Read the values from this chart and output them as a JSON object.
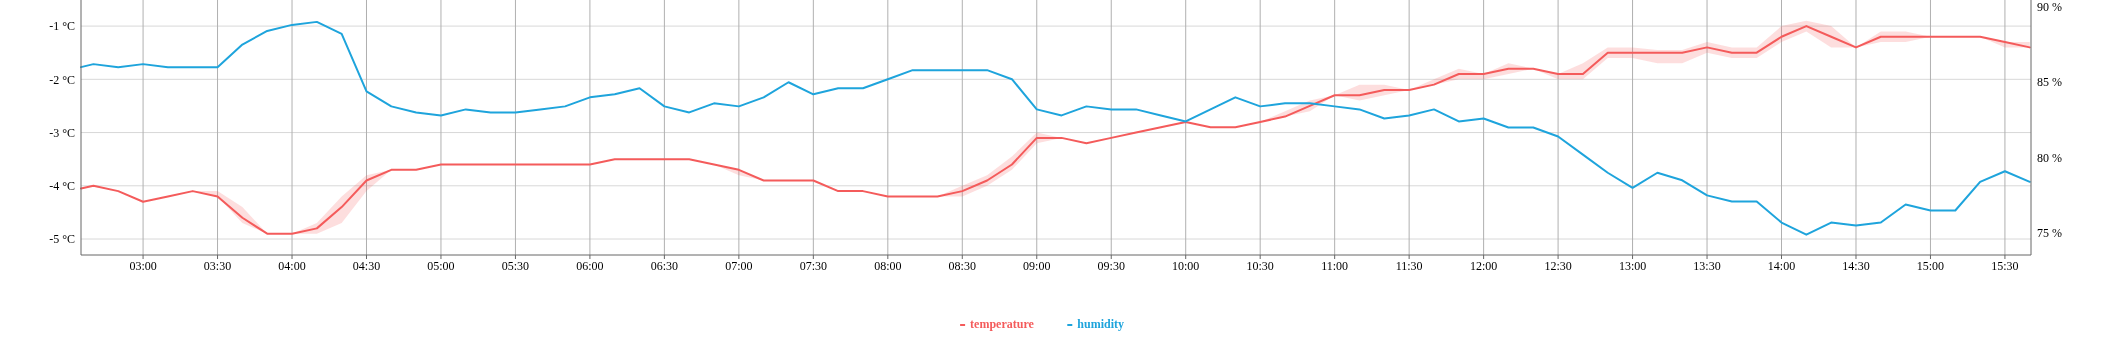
{
  "chart_data": {
    "type": "line",
    "x": [
      2.5833,
      2.6667,
      2.8333,
      3,
      3.1667,
      3.3333,
      3.5,
      3.6667,
      3.8333,
      4,
      4.1667,
      4.3333,
      4.5,
      4.6667,
      4.8333,
      5,
      5.1667,
      5.3333,
      5.5,
      5.6667,
      5.8333,
      6,
      6.1667,
      6.3333,
      6.5,
      6.6667,
      6.8333,
      7,
      7.1667,
      7.3333,
      7.5,
      7.6667,
      7.8333,
      8,
      8.1667,
      8.3333,
      8.5,
      8.6667,
      8.8333,
      9,
      9.1667,
      9.3333,
      9.5,
      9.6667,
      9.8333,
      10,
      10.1667,
      10.3333,
      10.5,
      10.6667,
      10.8333,
      11,
      11.1667,
      11.3333,
      11.5,
      11.6667,
      11.8333,
      12,
      12.1667,
      12.3333,
      12.5,
      12.6667,
      12.8333,
      13,
      13.1667,
      13.3333,
      13.5,
      13.6667,
      13.8333,
      14,
      14.1667,
      14.3333,
      14.5,
      14.6667,
      14.8333,
      15,
      15.1667,
      15.3333,
      15.5,
      15.6667
    ],
    "series": [
      {
        "name": "temperature",
        "color": "#f45b5b",
        "values": [
          -4.05,
          -4.0,
          -4.1,
          -4.3,
          -4.2,
          -4.1,
          -4.2,
          -4.6,
          -4.9,
          -4.9,
          -4.8,
          -4.4,
          -3.9,
          -3.7,
          -3.7,
          -3.6,
          -3.6,
          -3.6,
          -3.6,
          -3.6,
          -3.6,
          -3.6,
          -3.5,
          -3.5,
          -3.5,
          -3.5,
          -3.6,
          -3.7,
          -3.9,
          -3.9,
          -3.9,
          -4.1,
          -4.1,
          -4.2,
          -4.2,
          -4.2,
          -4.1,
          -3.9,
          -3.6,
          -3.1,
          -3.1,
          -3.2,
          -3.1,
          -3.0,
          -2.9,
          -2.8,
          -2.9,
          -2.9,
          -2.8,
          -2.7,
          -2.5,
          -2.3,
          -2.3,
          -2.2,
          -2.2,
          -2.1,
          -1.9,
          -1.9,
          -1.8,
          -1.8,
          -1.9,
          -1.9,
          -1.5,
          -1.5,
          -1.5,
          -1.5,
          -1.4,
          -1.5,
          -1.5,
          -1.2,
          -1.0,
          -1.2,
          -1.4,
          -1.2,
          -1.2,
          -1.2,
          -1.2,
          -1.2,
          -1.3,
          -1.4
        ],
        "lower": [
          -4.05,
          -4.0,
          -4.1,
          -4.3,
          -4.2,
          -4.1,
          -4.2,
          -4.7,
          -4.9,
          -4.9,
          -4.9,
          -4.7,
          -4.1,
          -3.7,
          -3.7,
          -3.6,
          -3.6,
          -3.6,
          -3.6,
          -3.6,
          -3.6,
          -3.6,
          -3.5,
          -3.5,
          -3.5,
          -3.5,
          -3.6,
          -3.8,
          -3.9,
          -3.9,
          -3.9,
          -4.1,
          -4.1,
          -4.2,
          -4.2,
          -4.2,
          -4.2,
          -4.0,
          -3.7,
          -3.2,
          -3.1,
          -3.2,
          -3.1,
          -3.0,
          -2.9,
          -2.8,
          -2.9,
          -2.9,
          -2.8,
          -2.7,
          -2.6,
          -2.3,
          -2.4,
          -2.3,
          -2.2,
          -2.1,
          -2.0,
          -2.0,
          -1.9,
          -1.8,
          -2.0,
          -2.0,
          -1.6,
          -1.6,
          -1.7,
          -1.7,
          -1.5,
          -1.6,
          -1.6,
          -1.3,
          -1.1,
          -1.4,
          -1.4,
          -1.3,
          -1.3,
          -1.2,
          -1.2,
          -1.2,
          -1.4,
          -1.4
        ],
        "upper": [
          -4.05,
          -4.0,
          -4.1,
          -4.3,
          -4.2,
          -4.1,
          -4.1,
          -4.4,
          -4.9,
          -4.9,
          -4.7,
          -4.2,
          -3.8,
          -3.7,
          -3.7,
          -3.6,
          -3.6,
          -3.6,
          -3.6,
          -3.6,
          -3.6,
          -3.6,
          -3.5,
          -3.5,
          -3.5,
          -3.5,
          -3.6,
          -3.7,
          -3.9,
          -3.9,
          -3.9,
          -4.1,
          -4.1,
          -4.2,
          -4.2,
          -4.2,
          -4.0,
          -3.8,
          -3.45,
          -3.0,
          -3.1,
          -3.2,
          -3.1,
          -3.0,
          -2.9,
          -2.8,
          -2.9,
          -2.9,
          -2.8,
          -2.6,
          -2.4,
          -2.3,
          -2.1,
          -2.1,
          -2.2,
          -2.0,
          -1.8,
          -1.9,
          -1.7,
          -1.8,
          -1.9,
          -1.7,
          -1.4,
          -1.4,
          -1.45,
          -1.45,
          -1.3,
          -1.4,
          -1.4,
          -1.0,
          -0.9,
          -1.0,
          -1.4,
          -1.1,
          -1.1,
          -1.2,
          -1.2,
          -1.2,
          -1.3,
          -1.3
        ]
      },
      {
        "name": "humidity",
        "color": "#1ea4dc",
        "axis": "y2",
        "values": [
          86.0,
          86.2,
          86.0,
          86.2,
          86.0,
          86.0,
          86.0,
          87.5,
          88.4,
          88.8,
          89.0,
          88.2,
          84.4,
          83.4,
          83.0,
          82.8,
          83.2,
          83.0,
          83.0,
          83.2,
          83.4,
          84.0,
          84.2,
          84.6,
          83.4,
          83.0,
          83.6,
          83.4,
          84.0,
          85.0,
          84.2,
          84.6,
          84.6,
          85.2,
          85.8,
          85.8,
          85.8,
          85.8,
          85.2,
          83.2,
          82.8,
          83.4,
          83.2,
          83.2,
          82.8,
          82.4,
          83.2,
          84.0,
          83.4,
          83.6,
          83.6,
          83.4,
          83.2,
          82.6,
          82.8,
          83.2,
          82.4,
          82.6,
          82.0,
          82.0,
          81.4,
          80.2,
          79.0,
          78.0,
          79.0,
          78.5,
          77.5,
          77.1,
          77.1,
          75.7,
          74.9,
          75.7,
          75.5,
          75.7,
          76.9,
          76.5,
          76.5,
          78.4,
          79.1,
          78.4
        ]
      }
    ],
    "xlim": [
      2.5833,
      15.675
    ],
    "xticks": [
      {
        "value": 3,
        "label": "03:00"
      },
      {
        "value": 3.5,
        "label": "03:30"
      },
      {
        "value": 4,
        "label": "04:00"
      },
      {
        "value": 4.5,
        "label": "04:30"
      },
      {
        "value": 5,
        "label": "05:00"
      },
      {
        "value": 5.5,
        "label": "05:30"
      },
      {
        "value": 6,
        "label": "06:00"
      },
      {
        "value": 6.5,
        "label": "06:30"
      },
      {
        "value": 7,
        "label": "07:00"
      },
      {
        "value": 7.5,
        "label": "07:30"
      },
      {
        "value": 8,
        "label": "08:00"
      },
      {
        "value": 8.5,
        "label": "08:30"
      },
      {
        "value": 9,
        "label": "09:00"
      },
      {
        "value": 9.5,
        "label": "09:30"
      },
      {
        "value": 10,
        "label": "10:00"
      },
      {
        "value": 10.5,
        "label": "10:30"
      },
      {
        "value": 11,
        "label": "11:00"
      },
      {
        "value": 11.5,
        "label": "11:30"
      },
      {
        "value": 12,
        "label": "12:00"
      },
      {
        "value": 12.5,
        "label": "12:30"
      },
      {
        "value": 13,
        "label": "13:00"
      },
      {
        "value": 13.5,
        "label": "13:30"
      },
      {
        "value": 14,
        "label": "14:00"
      },
      {
        "value": 14.5,
        "label": "14:30"
      },
      {
        "value": 15,
        "label": "15:00"
      },
      {
        "value": 15.5,
        "label": "15:30"
      }
    ],
    "ylim": [
      -5.3,
      -0.51
    ],
    "yticks": [
      {
        "value": -5,
        "label": "-5 °C"
      },
      {
        "value": -4,
        "label": "-4 °C"
      },
      {
        "value": -3,
        "label": "-3 °C"
      },
      {
        "value": -2,
        "label": "-2 °C"
      },
      {
        "value": -1,
        "label": "-1 °C"
      }
    ],
    "y2lim": [
      73.55,
      90.45
    ],
    "y2ticks": [
      {
        "value": 75,
        "label": "75 %"
      },
      {
        "value": 80,
        "label": "80 %"
      },
      {
        "value": 85,
        "label": "85 %"
      },
      {
        "value": 90,
        "label": "90 %"
      }
    ],
    "grid": true,
    "legend": "bottom",
    "line_style": "solid"
  }
}
